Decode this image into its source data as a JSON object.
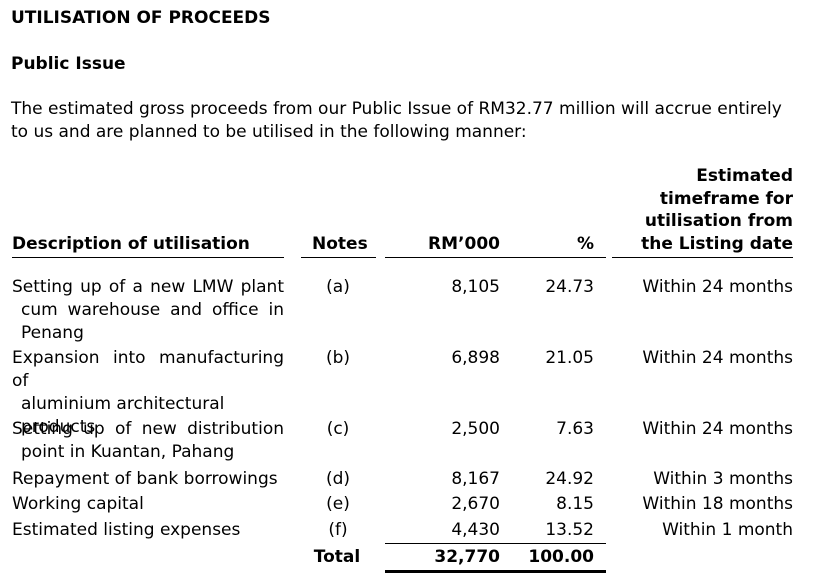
{
  "heading": "UTILISATION OF PROCEEDS",
  "subheading": "Public Issue",
  "intro": "The estimated gross proceeds from our Public Issue of RM32.77 million will accrue entirely to us and are planned to be utilised in the following manner:",
  "columns": {
    "description": "Description of utilisation",
    "notes": "Notes",
    "rm": "RM’000",
    "pct": "%",
    "timeframe": [
      "Estimated",
      "timeframe for",
      "utilisation from",
      "the Listing date"
    ]
  },
  "rows": [
    {
      "desc": [
        "Setting up of a new LMW plant",
        "cum warehouse and office in",
        "Penang"
      ],
      "note": "(a)",
      "rm": "8,105",
      "pct": "24.73",
      "tf": "Within 24 months"
    },
    {
      "desc": [
        "Expansion into manufacturing of",
        "aluminium architectural",
        "products"
      ],
      "note": "(b)",
      "rm": "6,898",
      "pct": "21.05",
      "tf": "Within 24 months"
    },
    {
      "desc": [
        "Setting up of new distribution",
        "point in Kuantan, Pahang"
      ],
      "note": "(c)",
      "rm": "2,500",
      "pct": "7.63",
      "tf": "Within 24 months"
    },
    {
      "desc": [
        "Repayment of bank borrowings"
      ],
      "note": "(d)",
      "rm": "8,167",
      "pct": "24.92",
      "tf": "Within 3 months"
    },
    {
      "desc": [
        "Working capital"
      ],
      "note": "(e)",
      "rm": "2,670",
      "pct": "8.15",
      "tf": "Within 18 months"
    },
    {
      "desc": [
        "Estimated listing expenses"
      ],
      "note": "(f)",
      "rm": "4,430",
      "pct": "13.52",
      "tf": "Within 1 month"
    }
  ],
  "total": {
    "label": "Total",
    "rm": "32,770",
    "pct": "100.00"
  }
}
